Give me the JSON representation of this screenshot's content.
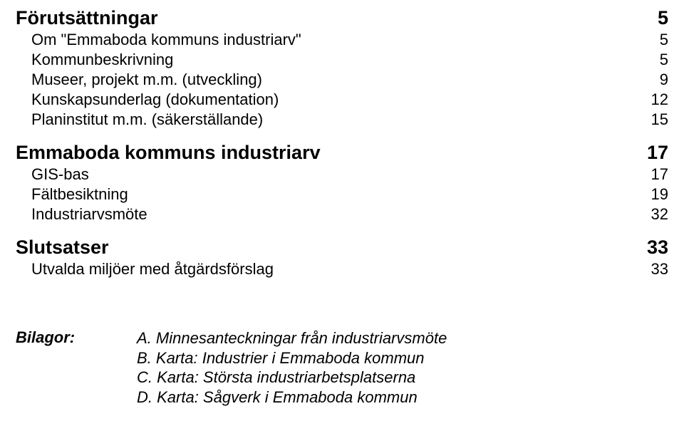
{
  "colors": {
    "background": "#ffffff",
    "text": "#000000"
  },
  "typography": {
    "font_family": "Arial, Helvetica, sans-serif",
    "heading_fontsize_pt": 20,
    "heading_fontweight": 700,
    "item_fontsize_pt": 16,
    "item_fontweight": 400,
    "bilagor_fontsize_pt": 16,
    "bilagor_fontstyle": "italic"
  },
  "sections": [
    {
      "title": "Förutsättningar",
      "page": "5",
      "items": [
        {
          "label": "Om \"Emmaboda kommuns industriarv\"",
          "page": "5"
        },
        {
          "label": "Kommunbeskrivning",
          "page": "5"
        },
        {
          "label": "Museer, projekt m.m. (utveckling)",
          "page": "9"
        },
        {
          "label": "Kunskapsunderlag (dokumentation)",
          "page": "12"
        },
        {
          "label": "Planinstitut m.m. (säkerställande)",
          "page": "15"
        }
      ]
    },
    {
      "title": "Emmaboda kommuns industriarv",
      "page": "17",
      "items": [
        {
          "label": "GIS-bas",
          "page": "17"
        },
        {
          "label": "Fältbesiktning",
          "page": "19"
        },
        {
          "label": "Industriarvsmöte",
          "page": "32"
        }
      ]
    },
    {
      "title": "Slutsatser",
      "page": "33",
      "items": [
        {
          "label": "Utvalda miljöer med åtgärdsförslag",
          "page": "33"
        }
      ]
    }
  ],
  "bilagor": {
    "label": "Bilagor:",
    "lines": [
      "A. Minnesanteckningar från industriarvsmöte",
      "B. Karta: Industrier i Emmaboda kommun",
      "C. Karta: Största industriarbetsplatserna",
      "D. Karta: Sågverk i Emmaboda kommun"
    ]
  }
}
